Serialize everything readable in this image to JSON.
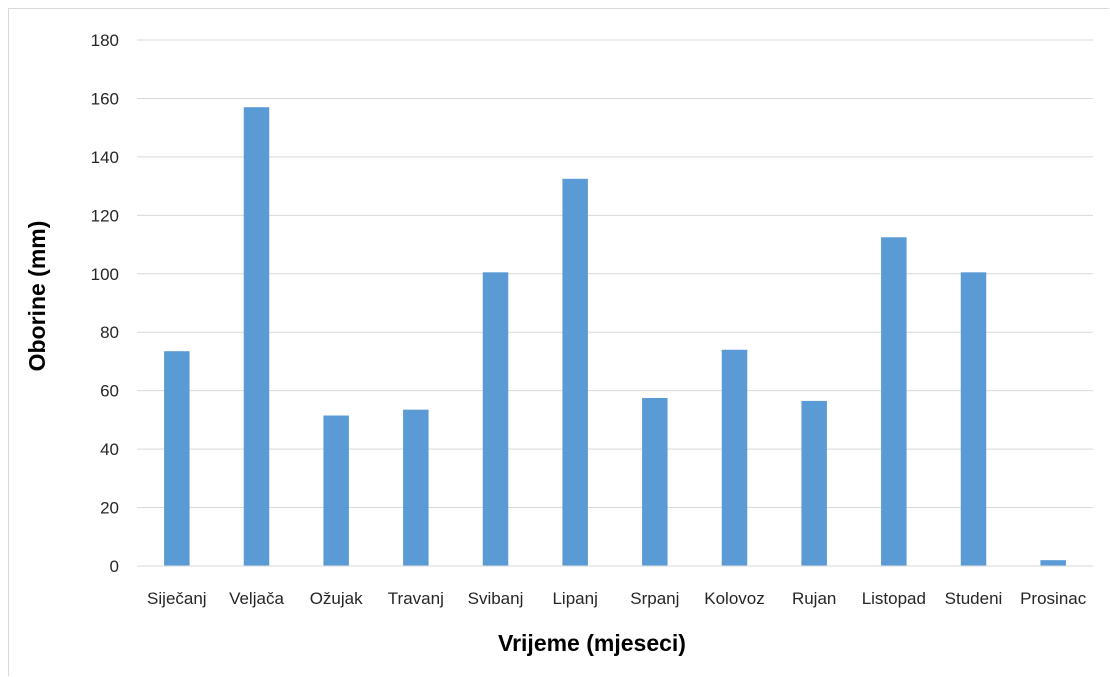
{
  "chart_data": {
    "type": "bar",
    "title": "",
    "xlabel": "Vrijeme (mjeseci)",
    "ylabel": "Oborine (mm)",
    "categories": [
      "Siječanj",
      "Veljača",
      "Ožujak",
      "Travanj",
      "Svibanj",
      "Lipanj",
      "Srpanj",
      "Kolovoz",
      "Rujan",
      "Listopad",
      "Studeni",
      "Prosinac"
    ],
    "values": [
      73.5,
      157,
      51.5,
      53.5,
      100.5,
      132.5,
      57.5,
      74,
      56.5,
      112.5,
      100.5,
      2
    ],
    "ylim": [
      0,
      180
    ],
    "yticks": [
      0,
      20,
      40,
      60,
      80,
      100,
      120,
      140,
      160,
      180
    ],
    "grid": true,
    "legend": "none",
    "colors": {
      "bar": "#5b9bd5",
      "grid": "#d9d9d9",
      "axis": "#d9d9d9",
      "text": "#262626"
    }
  }
}
